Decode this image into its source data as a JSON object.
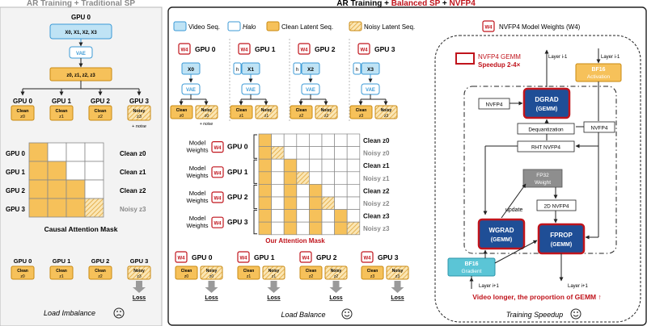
{
  "left": {
    "title": "AR Training + Traditional SP",
    "gpu0_top": "GPU 0",
    "x_all": "X0, X1, X2, X3",
    "vae": "VAE",
    "z_all": "z0, z1, z2, z3",
    "gpus": [
      "GPU 0",
      "GPU 1",
      "GPU 2",
      "GPU 3"
    ],
    "chunks": [
      {
        "t1": "Clean",
        "t2": "z0"
      },
      {
        "t1": "Clean",
        "t2": "z1"
      },
      {
        "t1": "Clean",
        "t2": "z2"
      },
      {
        "t1": "Noisy",
        "t2": "z3"
      }
    ],
    "noise_note": "+ noise",
    "mask_rows": [
      {
        "gpu": "GPU 0",
        "label": "Clean z0"
      },
      {
        "gpu": "GPU 1",
        "label": "Clean z1"
      },
      {
        "gpu": "GPU 2",
        "label": "Clean z2"
      },
      {
        "gpu": "GPU 3",
        "label": "Noisy z3"
      }
    ],
    "mask_caption": "Causal Attention Mask",
    "loss": "Loss",
    "footer": "Load Imbalance"
  },
  "mid": {
    "title_a": "AR Training + ",
    "title_b": "Balanced SP",
    "title_c": " + ",
    "title_d": "NVFP4",
    "legend": {
      "video": "Video Seq.",
      "halo": "Halo",
      "clean": "Clean Latent Seq.",
      "noisy": "Noisy Latent Seq.",
      "w4": "W4",
      "weights": "NVFP4 Model Weights (W4)"
    },
    "gpus": [
      {
        "name": "GPU 0",
        "x": "X0",
        "halo": ""
      },
      {
        "name": "GPU 1",
        "x": "X1",
        "halo": "h"
      },
      {
        "name": "GPU 2",
        "x": "X2",
        "halo": "h"
      },
      {
        "name": "GPU 3",
        "x": "X3",
        "halo": "h"
      }
    ],
    "vae": "VAE",
    "chunks": [
      {
        "c1": "Clean",
        "c2": "z0",
        "n1": "Noisy",
        "n2": "z0"
      },
      {
        "c1": "Clean",
        "c2": "z1",
        "n1": "Noisy",
        "n2": "z1"
      },
      {
        "c1": "Clean",
        "c2": "z2",
        "n1": "Noisy",
        "n2": "z2"
      },
      {
        "c1": "Clean",
        "c2": "z3",
        "n1": "Noisy",
        "n2": "z3"
      }
    ],
    "noise_note": "+ noise",
    "model_weights_1": "Model",
    "model_weights_2": "Weights",
    "mask_rows": [
      {
        "label": "Clean z0",
        "kind": "clean"
      },
      {
        "label": "Noisy z0",
        "kind": "noisy"
      },
      {
        "label": "Clean z1",
        "kind": "clean"
      },
      {
        "label": "Noisy z1",
        "kind": "noisy"
      },
      {
        "label": "Clean z2",
        "kind": "clean"
      },
      {
        "label": "Noisy z2",
        "kind": "noisy"
      },
      {
        "label": "Clean z3",
        "kind": "clean"
      },
      {
        "label": "Noisy z3",
        "kind": "noisy"
      }
    ],
    "mask_caption": "Our Attention Mask",
    "loss": "Loss",
    "footer": "Load Balance"
  },
  "right": {
    "legend1": "NVFP4 GEMM",
    "legend2": "Speedup 2-4×",
    "layer_im1": "Layer i-1",
    "layer_ip1": "Layer i+1",
    "bf16_act_1": "BF16",
    "bf16_act_2": "Activation",
    "dgrad": "DGRAD",
    "gemm": "(GEMM)",
    "nvfp4": "NVFP4",
    "dequant": "Dequantization",
    "rht": "RHT NVFP4",
    "fp32_1": "FP32",
    "fp32_2": "Weight",
    "nvfp4_2d": "2D NVFP4",
    "update": "update",
    "wgrad": "WGRAD",
    "fprop": "FPROP",
    "bf16_grad_1": "BF16",
    "bf16_grad_2": "Gradient",
    "bottom": "Video longer, the proportion of GEMM ↑",
    "footer": "Training Speedup"
  },
  "colors": {
    "orange": "#F6C15A",
    "orange_edge": "#C98A12",
    "blue": "#BFE3F5",
    "blue_edge": "#3B9AD6",
    "red": "#C0141C",
    "navy": "#1F4E96",
    "gray_text": "#8A8A8A",
    "teal": "#5BC5D6"
  }
}
